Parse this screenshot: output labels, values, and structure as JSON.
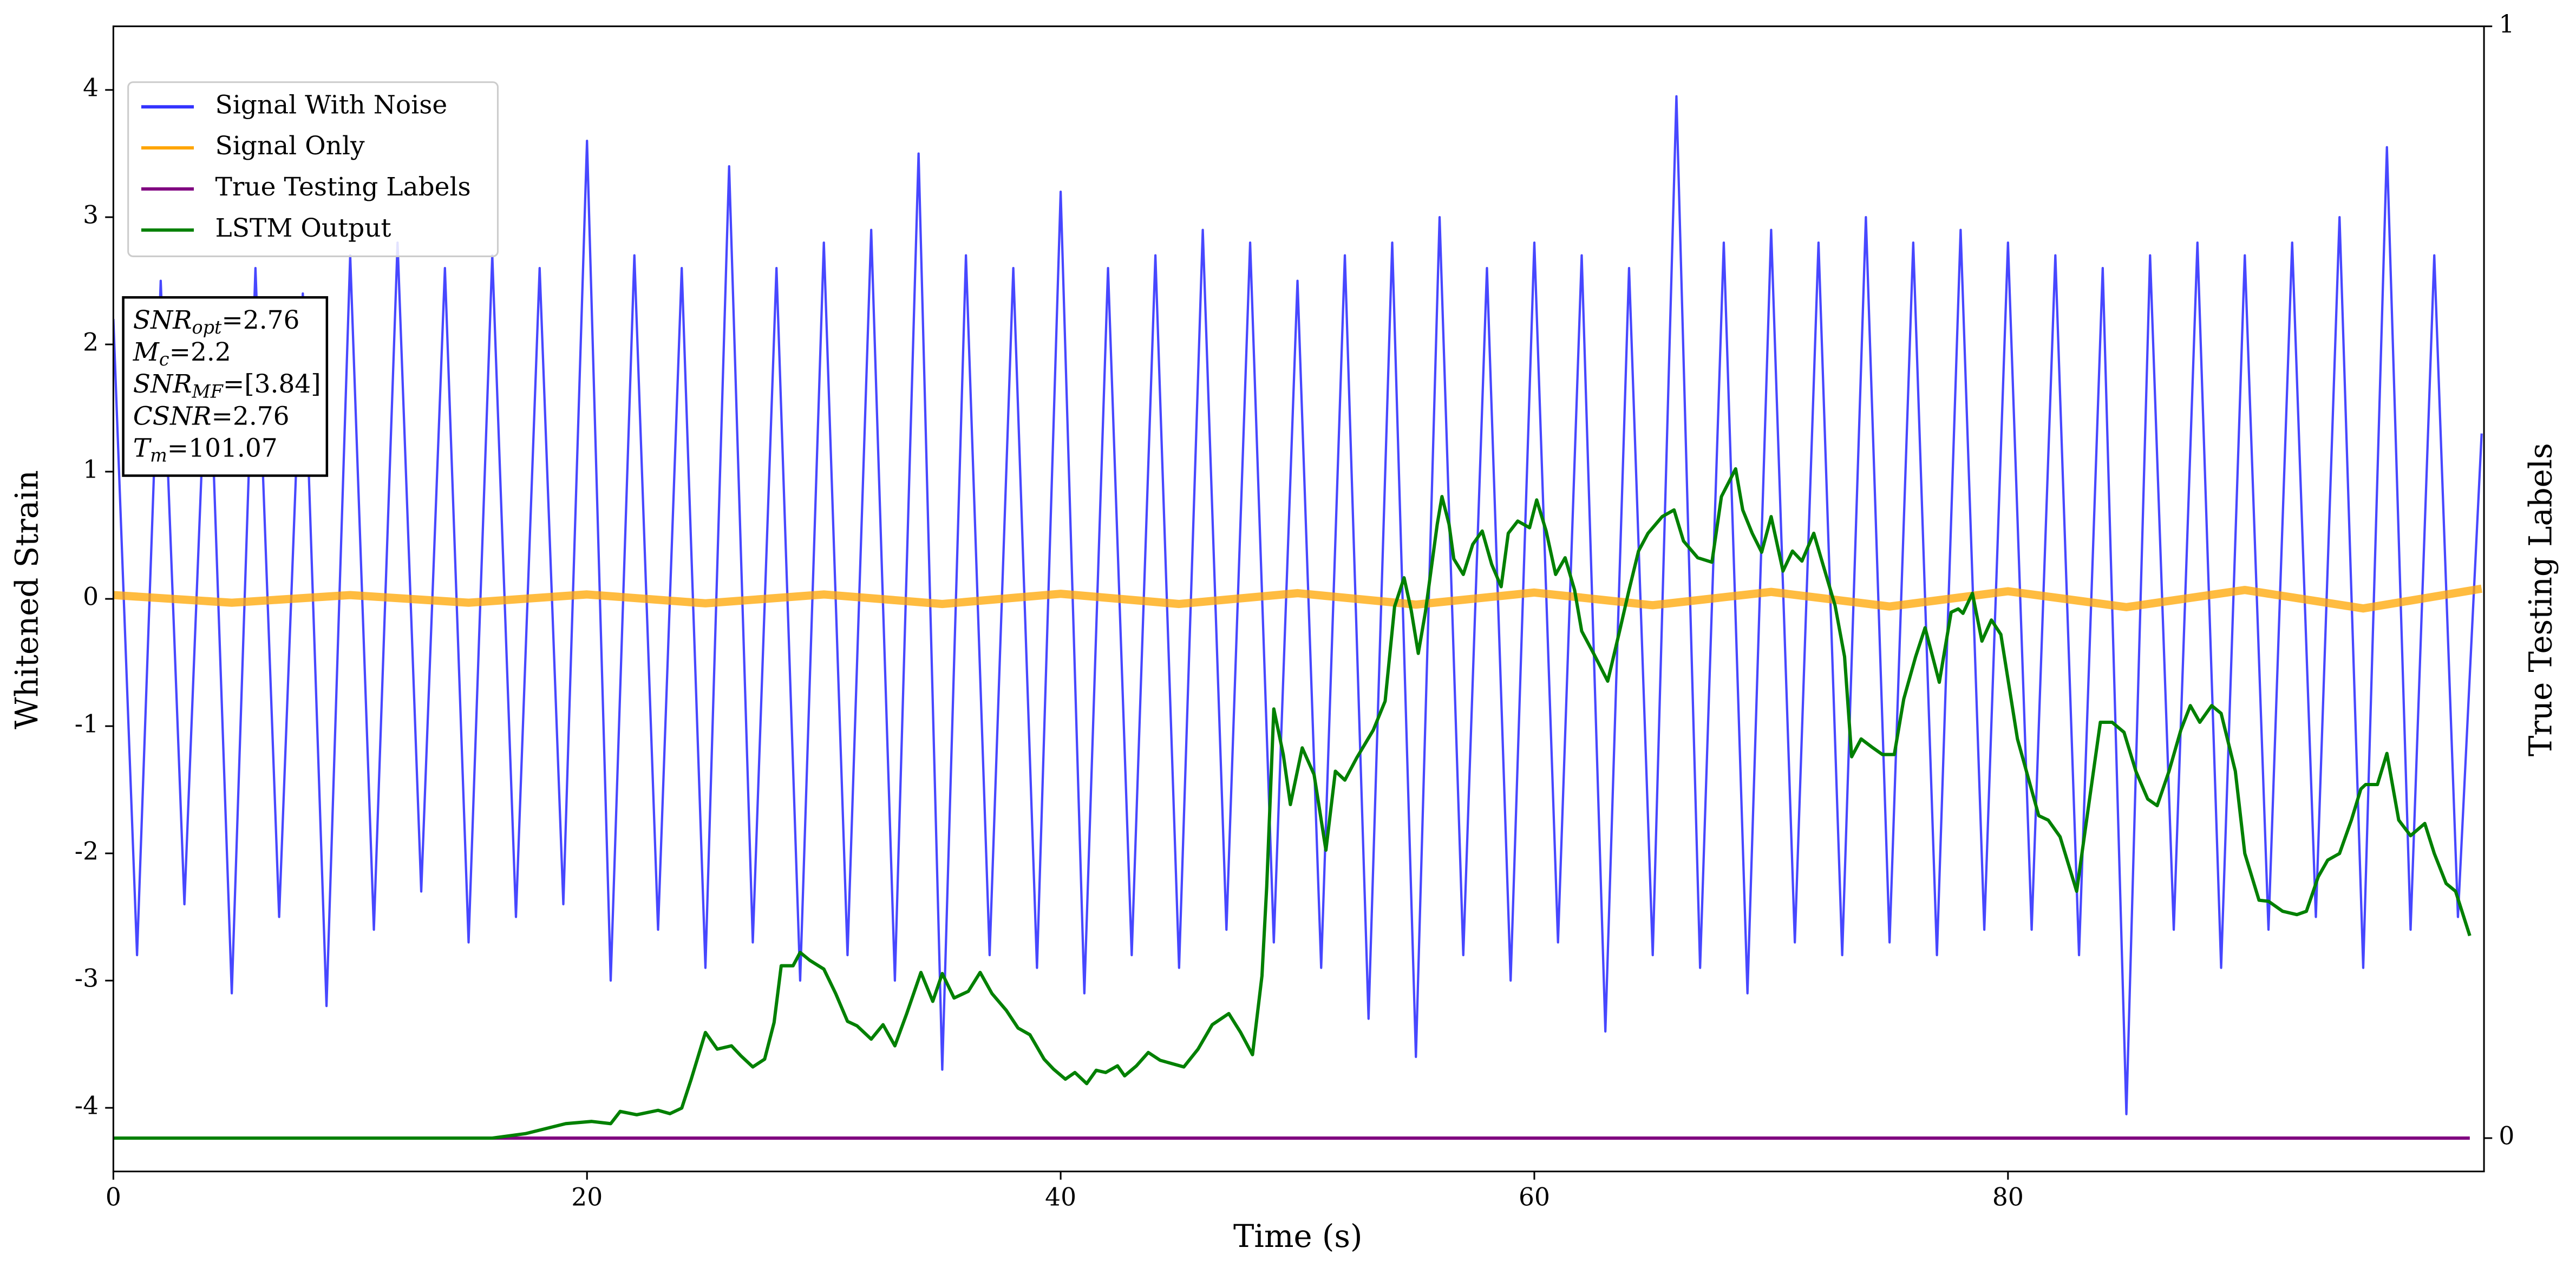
{
  "chart_data": {
    "type": "line",
    "xlabel": "Time (s)",
    "ylabel": "Whitened Strain",
    "y2label": "True Testing Labels",
    "xlim": [
      0,
      100.1
    ],
    "xticks": [
      0,
      20,
      40,
      60,
      80
    ],
    "ylim": [
      -4.5,
      4.5
    ],
    "yticks": [
      -4,
      -3,
      -2,
      -1,
      0,
      1,
      2,
      3,
      4
    ],
    "y2lim": [
      -0.03,
      1.0
    ],
    "y2ticks": [
      0,
      1
    ],
    "legend": "upper left",
    "annotations": [
      {
        "symbol": "SNR",
        "subscript": "opt",
        "text": "=2.76"
      },
      {
        "symbol": "M",
        "subscript": "c",
        "text": "=2.2"
      },
      {
        "symbol": "SNR",
        "subscript": "MF",
        "text": "=[3.84]"
      },
      {
        "symbol": "CSNR",
        "text": "=2.76"
      },
      {
        "symbol": "T",
        "subscript": "m",
        "text": "=101.07"
      }
    ],
    "series": [
      {
        "name": "Signal With Noise",
        "color": "#3333ff",
        "x": [
          0,
          1,
          2,
          3,
          4,
          5,
          6,
          7,
          8,
          9,
          10,
          11,
          12,
          13,
          14,
          15,
          16,
          17,
          18,
          19,
          20,
          21,
          22,
          23,
          24,
          25,
          26,
          27,
          28,
          29,
          30,
          31,
          32,
          33,
          34,
          35,
          36,
          37,
          38,
          39,
          40,
          41,
          42,
          43,
          44,
          45,
          46,
          47,
          48,
          49,
          50,
          51,
          52,
          53,
          54,
          55,
          56,
          57,
          58,
          59,
          60,
          61,
          62,
          63,
          64,
          65,
          66,
          67,
          68,
          69,
          70,
          71,
          72,
          73,
          74,
          75,
          76,
          77,
          78,
          79,
          80,
          81,
          82,
          83,
          84,
          85,
          86,
          87,
          88,
          89,
          90,
          91,
          92,
          93,
          94,
          95,
          96,
          97,
          98,
          99,
          100
        ],
        "values": [
          2.2,
          -2.8,
          2.5,
          -2.4,
          2.3,
          -3.1,
          2.6,
          -2.5,
          2.4,
          -3.2,
          2.7,
          -2.6,
          2.8,
          -2.3,
          2.6,
          -2.7,
          2.7,
          -2.5,
          2.6,
          -2.4,
          3.6,
          -3.0,
          2.7,
          -2.6,
          2.6,
          -2.9,
          3.4,
          -2.7,
          2.6,
          -3.0,
          2.8,
          -2.8,
          2.9,
          -3.0,
          3.5,
          -3.7,
          2.7,
          -2.8,
          2.6,
          -2.9,
          3.2,
          -3.1,
          2.6,
          -2.8,
          2.7,
          -2.9,
          2.9,
          -2.6,
          2.8,
          -2.7,
          2.5,
          -2.9,
          2.7,
          -3.3,
          2.8,
          -3.6,
          3.0,
          -2.8,
          2.6,
          -3.0,
          2.8,
          -2.7,
          2.7,
          -3.4,
          2.6,
          -2.8,
          3.95,
          -2.9,
          2.8,
          -3.1,
          2.9,
          -2.7,
          2.8,
          -2.8,
          3.0,
          -2.7,
          2.8,
          -2.8,
          2.9,
          -2.6,
          2.8,
          -2.6,
          2.7,
          -2.8,
          2.6,
          -4.05,
          2.7,
          -2.6,
          2.8,
          -2.9,
          2.7,
          -2.6,
          2.8,
          -2.5,
          3.0,
          -2.9,
          3.55,
          -2.6,
          2.7,
          -2.5,
          1.3
        ]
      },
      {
        "name": "Signal Only",
        "color": "#ffa500",
        "x": [
          0,
          5,
          10,
          15,
          20,
          25,
          30,
          35,
          40,
          45,
          50,
          55,
          60,
          65,
          70,
          75,
          80,
          85,
          90,
          95,
          100
        ],
        "values": [
          0.03,
          -0.03,
          0.03,
          -0.03,
          0.035,
          -0.035,
          0.035,
          -0.04,
          0.04,
          -0.04,
          0.045,
          -0.045,
          0.05,
          -0.05,
          0.055,
          -0.06,
          0.06,
          -0.065,
          0.07,
          -0.075,
          0.08
        ]
      },
      {
        "name": "True Testing Labels",
        "color": "#800080",
        "axis": "y2",
        "x": [
          0,
          99.5
        ],
        "values": [
          0,
          0
        ]
      },
      {
        "name": "LSTM Output",
        "color": "#008000",
        "axis": "y2",
        "x": [
          0,
          16.0,
          17.4,
          19.1,
          20.2,
          21.0,
          21.4,
          22.1,
          23.0,
          23.5,
          24.0,
          24.4,
          25.0,
          25.5,
          26.1,
          26.5,
          27.0,
          27.5,
          27.9,
          28.2,
          28.7,
          29.0,
          29.4,
          30.0,
          30.5,
          31.0,
          31.4,
          32.0,
          32.5,
          33.0,
          33.5,
          34.1,
          34.6,
          35.0,
          35.5,
          36.1,
          36.6,
          37.1,
          37.7,
          38.2,
          38.7,
          39.3,
          39.7,
          40.2,
          40.6,
          41.1,
          41.5,
          41.9,
          42.4,
          42.7,
          43.2,
          43.7,
          44.2,
          44.7,
          45.2,
          45.8,
          46.4,
          47.1,
          47.6,
          48.1,
          48.5,
          48.7,
          49.0,
          49.4,
          49.7,
          50.2,
          50.7,
          51.2,
          51.6,
          52.0,
          52.5,
          53.2,
          53.7,
          54.1,
          54.5,
          54.8,
          55.1,
          55.4,
          55.9,
          56.1,
          56.4,
          56.6,
          57.0,
          57.4,
          57.8,
          58.2,
          58.6,
          58.9,
          59.3,
          59.8,
          60.1,
          60.5,
          60.9,
          61.3,
          61.7,
          62.0,
          62.5,
          63.1,
          63.6,
          64.0,
          64.4,
          64.8,
          65.4,
          65.9,
          66.3,
          66.9,
          67.5,
          67.9,
          68.5,
          68.8,
          69.2,
          69.6,
          70.0,
          70.5,
          70.9,
          71.3,
          71.8,
          72.2,
          72.7,
          73.1,
          73.4,
          73.8,
          74.3,
          74.7,
          75.2,
          75.6,
          76.1,
          76.5,
          77.1,
          77.6,
          77.9,
          78.1,
          78.5,
          78.9,
          79.3,
          79.7,
          80.4,
          81.3,
          81.7,
          82.2,
          82.9,
          83.3,
          83.9,
          84.4,
          84.9,
          85.4,
          85.9,
          86.3,
          86.8,
          87.3,
          87.7,
          88.1,
          88.6,
          89.0,
          89.6,
          90.0,
          90.6,
          91.0,
          91.6,
          92.2,
          92.6,
          93.1,
          93.5,
          94.0,
          94.5,
          94.9,
          95.1,
          95.6,
          96.0,
          96.5,
          97.0,
          97.6,
          98.0,
          98.5,
          98.9,
          99.5
        ],
        "values": [
          0,
          0,
          0.004,
          0.013,
          0.015,
          0.013,
          0.024,
          0.021,
          0.025,
          0.022,
          0.027,
          0.053,
          0.095,
          0.08,
          0.083,
          0.074,
          0.064,
          0.071,
          0.104,
          0.155,
          0.155,
          0.167,
          0.16,
          0.152,
          0.13,
          0.105,
          0.101,
          0.089,
          0.102,
          0.083,
          0.112,
          0.149,
          0.123,
          0.148,
          0.126,
          0.132,
          0.149,
          0.13,
          0.115,
          0.099,
          0.093,
          0.071,
          0.062,
          0.053,
          0.059,
          0.049,
          0.061,
          0.059,
          0.065,
          0.056,
          0.065,
          0.077,
          0.07,
          0.067,
          0.064,
          0.08,
          0.102,
          0.112,
          0.095,
          0.075,
          0.146,
          0.226,
          0.386,
          0.345,
          0.3,
          0.351,
          0.327,
          0.259,
          0.33,
          0.322,
          0.342,
          0.367,
          0.393,
          0.478,
          0.504,
          0.475,
          0.436,
          0.473,
          0.552,
          0.577,
          0.552,
          0.521,
          0.507,
          0.534,
          0.546,
          0.516,
          0.496,
          0.544,
          0.555,
          0.549,
          0.574,
          0.546,
          0.507,
          0.522,
          0.493,
          0.456,
          0.436,
          0.411,
          0.456,
          0.493,
          0.528,
          0.544,
          0.559,
          0.565,
          0.537,
          0.522,
          0.518,
          0.577,
          0.602,
          0.565,
          0.544,
          0.527,
          0.559,
          0.51,
          0.528,
          0.519,
          0.544,
          0.515,
          0.479,
          0.433,
          0.343,
          0.359,
          0.351,
          0.345,
          0.345,
          0.395,
          0.433,
          0.459,
          0.41,
          0.473,
          0.476,
          0.472,
          0.49,
          0.447,
          0.466,
          0.453,
          0.359,
          0.29,
          0.286,
          0.271,
          0.222,
          0.283,
          0.374,
          0.374,
          0.365,
          0.33,
          0.305,
          0.299,
          0.33,
          0.367,
          0.389,
          0.374,
          0.389,
          0.382,
          0.33,
          0.256,
          0.214,
          0.213,
          0.204,
          0.201,
          0.204,
          0.235,
          0.25,
          0.256,
          0.286,
          0.314,
          0.318,
          0.318,
          0.346,
          0.286,
          0.272,
          0.283,
          0.256,
          0.229,
          0.222,
          0.182
        ]
      }
    ]
  }
}
